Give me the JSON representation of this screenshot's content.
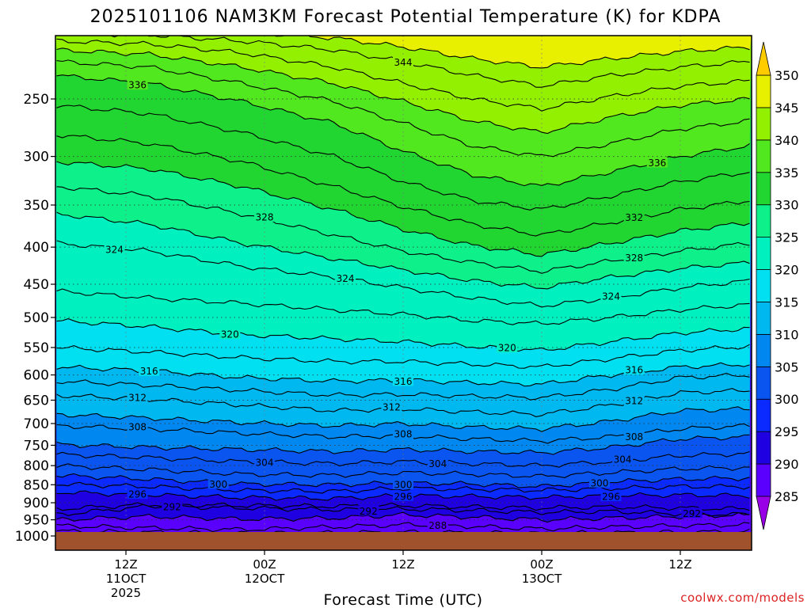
{
  "chart_data": {
    "type": "heatmap",
    "title": "2025101106 NAM3KM Forecast Potential Temperature (K) for KDPA",
    "xlabel": "Forecast Time (UTC)",
    "ylabel": "",
    "credit": "coolwx.com/models",
    "y_axis": {
      "scale": "pressure-log",
      "range": [
        1000,
        200
      ],
      "ticks": [
        250,
        300,
        350,
        400,
        450,
        500,
        550,
        600,
        650,
        700,
        750,
        800,
        850,
        900,
        950,
        1000
      ]
    },
    "x_axis": {
      "range_hours": [
        6,
        66
      ],
      "ticks": [
        {
          "hour": 12,
          "line1": "12Z",
          "line2": "11OCT",
          "line3": "2025"
        },
        {
          "hour": 24,
          "line1": "00Z",
          "line2": "12OCT",
          "line3": ""
        },
        {
          "hour": 36,
          "line1": "12Z",
          "line2": "",
          "line3": ""
        },
        {
          "hour": 48,
          "line1": "00Z",
          "line2": "13OCT",
          "line3": ""
        },
        {
          "hour": 60,
          "line1": "12Z",
          "line2": "",
          "line3": ""
        }
      ]
    },
    "colorbar": {
      "levels": [
        285,
        290,
        295,
        300,
        305,
        310,
        315,
        320,
        325,
        330,
        335,
        340,
        345,
        350
      ],
      "colors": [
        "#9a00e6",
        "#5a00ff",
        "#1e00e0",
        "#0a2aff",
        "#0a55f0",
        "#0088f0",
        "#00b8f0",
        "#00e0f0",
        "#00f0c0",
        "#0ef08a",
        "#22d632",
        "#52e820",
        "#92f000",
        "#e8f000",
        "#ffcc00"
      ]
    },
    "ground_color": "#a0522d",
    "isentropes": [
      {
        "theta": 286,
        "label": false,
        "x_hours": [
          6,
          14,
          22,
          30,
          36,
          42,
          48,
          54,
          60,
          66
        ],
        "p_hpa": [
          985,
          988,
          992,
          990,
          988,
          990,
          992,
          990,
          988,
          986
        ]
      },
      {
        "theta": 288,
        "label": true,
        "label_hour": 39,
        "x_hours": [
          6,
          14,
          22,
          30,
          36,
          42,
          48,
          54,
          60,
          66
        ],
        "p_hpa": [
          968,
          975,
          980,
          972,
          965,
          970,
          978,
          972,
          968,
          965
        ]
      },
      {
        "theta": 290,
        "label": false,
        "x_hours": [
          6,
          14,
          22,
          30,
          36,
          42,
          48,
          54,
          60,
          66
        ],
        "p_hpa": [
          950,
          940,
          948,
          945,
          935,
          942,
          950,
          945,
          940,
          935
        ]
      },
      {
        "theta": 292,
        "label": true,
        "label_hour": 16,
        "x_hours": [
          6,
          14,
          22,
          30,
          36,
          42,
          48,
          54,
          60,
          66
        ],
        "p_hpa": [
          935,
          910,
          915,
          920,
          918,
          922,
          928,
          925,
          932,
          935
        ]
      },
      {
        "theta": 294,
        "label": false,
        "x_hours": [
          6,
          14,
          22,
          30,
          36,
          42,
          48,
          54,
          60,
          66
        ],
        "p_hpa": [
          918,
          905,
          908,
          910,
          908,
          912,
          915,
          912,
          915,
          918
        ]
      },
      {
        "theta": 296,
        "label": true,
        "label_hour": 13,
        "x_hours": [
          6,
          14,
          22,
          30,
          36,
          42,
          48,
          54,
          60,
          66
        ],
        "p_hpa": [
          870,
          878,
          885,
          888,
          880,
          882,
          885,
          880,
          878,
          880
        ]
      },
      {
        "theta": 298,
        "label": false,
        "x_hours": [
          6,
          14,
          22,
          30,
          36,
          42,
          48,
          54,
          60,
          66
        ],
        "p_hpa": [
          848,
          855,
          865,
          868,
          860,
          862,
          865,
          860,
          855,
          855
        ]
      },
      {
        "theta": 300,
        "label": true,
        "label_hour": 20,
        "x_hours": [
          6,
          14,
          22,
          30,
          36,
          42,
          48,
          54,
          60,
          66
        ],
        "p_hpa": [
          825,
          835,
          848,
          850,
          845,
          848,
          855,
          842,
          835,
          832
        ]
      },
      {
        "theta": 302,
        "label": false,
        "x_hours": [
          6,
          14,
          22,
          30,
          36,
          42,
          48,
          54,
          60,
          66
        ],
        "p_hpa": [
          800,
          810,
          822,
          825,
          818,
          822,
          828,
          818,
          808,
          805
        ]
      },
      {
        "theta": 304,
        "label": true,
        "label_hour": 24,
        "x_hours": [
          6,
          14,
          22,
          30,
          36,
          42,
          48,
          54,
          60,
          66
        ],
        "p_hpa": [
          772,
          780,
          790,
          795,
          790,
          795,
          800,
          790,
          775,
          770
        ]
      },
      {
        "theta": 306,
        "label": false,
        "x_hours": [
          6,
          14,
          22,
          30,
          36,
          42,
          48,
          54,
          60,
          66
        ],
        "p_hpa": [
          748,
          755,
          760,
          765,
          760,
          765,
          768,
          755,
          735,
          730
        ]
      },
      {
        "theta": 308,
        "label": true,
        "label_hour": 13,
        "x_hours": [
          6,
          14,
          22,
          30,
          36,
          42,
          48,
          54,
          60,
          66
        ],
        "p_hpa": [
          705,
          712,
          722,
          730,
          728,
          735,
          740,
          730,
          712,
          705
        ]
      },
      {
        "theta": 310,
        "label": false,
        "x_hours": [
          6,
          14,
          22,
          30,
          36,
          42,
          48,
          54,
          60,
          66
        ],
        "p_hpa": [
          680,
          688,
          698,
          705,
          700,
          708,
          712,
          695,
          672,
          668
        ]
      },
      {
        "theta": 312,
        "label": true,
        "label_hour": 13,
        "x_hours": [
          6,
          14,
          22,
          30,
          36,
          42,
          48,
          54,
          60,
          66
        ],
        "p_hpa": [
          640,
          648,
          660,
          672,
          668,
          675,
          680,
          660,
          635,
          630
        ]
      },
      {
        "theta": 314,
        "label": false,
        "x_hours": [
          6,
          14,
          22,
          30,
          36,
          42,
          48,
          54,
          60,
          66
        ],
        "p_hpa": [
          612,
          620,
          630,
          640,
          638,
          642,
          645,
          628,
          605,
          600
        ]
      },
      {
        "theta": 316,
        "label": true,
        "label_hour": 14,
        "x_hours": [
          6,
          14,
          22,
          30,
          36,
          42,
          48,
          54,
          60,
          66
        ],
        "p_hpa": [
          585,
          592,
          605,
          612,
          610,
          615,
          618,
          600,
          585,
          580
        ]
      },
      {
        "theta": 318,
        "label": false,
        "x_hours": [
          6,
          14,
          22,
          30,
          36,
          42,
          48,
          54,
          60,
          66
        ],
        "p_hpa": [
          550,
          558,
          568,
          575,
          575,
          580,
          585,
          570,
          555,
          548
        ]
      },
      {
        "theta": 320,
        "label": true,
        "label_hour": 21,
        "x_hours": [
          6,
          14,
          22,
          30,
          36,
          42,
          48,
          54,
          60,
          66
        ],
        "p_hpa": [
          505,
          515,
          528,
          535,
          540,
          548,
          555,
          540,
          525,
          518
        ]
      },
      {
        "theta": 322,
        "label": false,
        "x_hours": [
          6,
          14,
          22,
          30,
          36,
          42,
          48,
          54,
          60,
          66
        ],
        "p_hpa": [
          460,
          470,
          478,
          488,
          495,
          505,
          510,
          500,
          488,
          480
        ]
      },
      {
        "theta": 324,
        "label": true,
        "label_hour": 11,
        "x_hours": [
          6,
          14,
          22,
          30,
          36,
          42,
          48,
          54,
          60,
          66
        ],
        "p_hpa": [
          395,
          405,
          425,
          440,
          455,
          470,
          482,
          470,
          455,
          445
        ]
      },
      {
        "theta": 326,
        "label": false,
        "x_hours": [
          6,
          14,
          22,
          30,
          36,
          42,
          48,
          54,
          60,
          66
        ],
        "p_hpa": [
          360,
          372,
          395,
          415,
          430,
          445,
          455,
          440,
          428,
          420
        ]
      },
      {
        "theta": 328,
        "label": true,
        "label_hour": 24,
        "x_hours": [
          6,
          14,
          22,
          30,
          36,
          42,
          48,
          54,
          60,
          66
        ],
        "p_hpa": [
          330,
          340,
          360,
          385,
          405,
          420,
          432,
          418,
          405,
          395
        ]
      },
      {
        "theta": 330,
        "label": false,
        "x_hours": [
          6,
          14,
          22,
          30,
          36,
          42,
          48,
          54,
          60,
          66
        ],
        "p_hpa": [
          305,
          312,
          330,
          355,
          378,
          398,
          410,
          395,
          380,
          370
        ]
      },
      {
        "theta": 332,
        "label": true,
        "label_hour": 56,
        "x_hours": [
          6,
          14,
          22,
          30,
          36,
          42,
          48,
          54,
          60,
          66
        ],
        "p_hpa": [
          280,
          288,
          305,
          330,
          352,
          372,
          385,
          370,
          355,
          345
        ]
      },
      {
        "theta": 334,
        "label": false,
        "x_hours": [
          6,
          14,
          22,
          30,
          36,
          42,
          48,
          54,
          60,
          66
        ],
        "p_hpa": [
          255,
          262,
          278,
          300,
          325,
          345,
          355,
          340,
          325,
          315
        ]
      },
      {
        "theta": 336,
        "label": true,
        "label_hour": 13,
        "x_hours": [
          6,
          14,
          22,
          30,
          36,
          42,
          48,
          54,
          60,
          66
        ],
        "p_hpa": [
          232,
          238,
          252,
          270,
          295,
          318,
          330,
          315,
          300,
          290
        ]
      },
      {
        "theta": 338,
        "label": false,
        "x_hours": [
          6,
          14,
          22,
          30,
          36,
          42,
          48,
          54,
          60,
          66
        ],
        "p_hpa": [
          222,
          226,
          238,
          252,
          270,
          290,
          300,
          288,
          275,
          268
        ]
      },
      {
        "theta": 340,
        "label": false,
        "x_hours": [
          6,
          14,
          22,
          30,
          36,
          42,
          48,
          54,
          60,
          66
        ],
        "p_hpa": [
          214,
          217,
          226,
          238,
          252,
          268,
          278,
          265,
          255,
          250
        ]
      },
      {
        "theta": 342,
        "label": false,
        "x_hours": [
          6,
          14,
          22,
          30,
          36,
          42,
          48,
          54,
          60,
          66
        ],
        "p_hpa": [
          208,
          210,
          216,
          226,
          238,
          250,
          258,
          248,
          240,
          236
        ]
      },
      {
        "theta": 344,
        "label": true,
        "label_hour": 36,
        "x_hours": [
          6,
          14,
          22,
          30,
          36,
          42,
          48,
          54,
          60,
          66
        ],
        "p_hpa": [
          203,
          204,
          208,
          214,
          222,
          232,
          240,
          232,
          226,
          222
        ]
      },
      {
        "theta": 346,
        "label": false,
        "x_hours": [
          6,
          14,
          22,
          30,
          36,
          42,
          48,
          54,
          60,
          66
        ],
        "p_hpa": [
          200,
          200,
          202,
          206,
          212,
          220,
          226,
          220,
          215,
          212
        ]
      }
    ],
    "extra_labels": [
      {
        "theta": 336,
        "hour": 58
      },
      {
        "theta": 328,
        "hour": 56
      },
      {
        "theta": 324,
        "hour": 54
      },
      {
        "theta": 324,
        "hour": 31
      },
      {
        "theta": 320,
        "hour": 45
      },
      {
        "theta": 316,
        "hour": 56
      },
      {
        "theta": 316,
        "hour": 36
      },
      {
        "theta": 312,
        "hour": 56
      },
      {
        "theta": 312,
        "hour": 35
      },
      {
        "theta": 308,
        "hour": 36
      },
      {
        "theta": 308,
        "hour": 56
      },
      {
        "theta": 304,
        "hour": 39
      },
      {
        "theta": 304,
        "hour": 55
      },
      {
        "theta": 300,
        "hour": 36
      },
      {
        "theta": 300,
        "hour": 53
      },
      {
        "theta": 296,
        "hour": 36
      },
      {
        "theta": 296,
        "hour": 54
      },
      {
        "theta": 292,
        "hour": 33
      },
      {
        "theta": 292,
        "hour": 61
      }
    ]
  }
}
